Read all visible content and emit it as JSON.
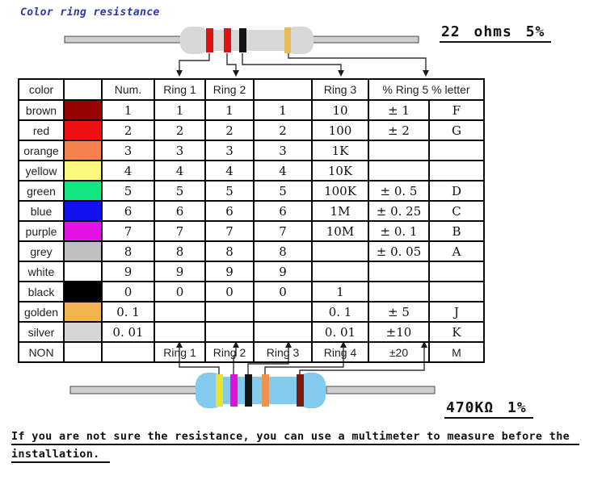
{
  "title": "Color ring resistance",
  "title_color": "#2a35b8",
  "top_resistor": {
    "label": "22 ohms 5%",
    "body_color": "#d8d8d8",
    "band_names": [
      "red",
      "red",
      "black",
      "gold"
    ],
    "band_colors": [
      "#dd1414",
      "#dd1414",
      "#141414",
      "#e6bd58"
    ]
  },
  "bottom_resistor": {
    "label": "470KΩ 1%",
    "body_color": "#82cbec",
    "band_names": [
      "yellow",
      "purple",
      "black",
      "orange",
      "brown"
    ],
    "band_colors": [
      "#e8e232",
      "#e012dd",
      "#141414",
      "#ec9350",
      "#7c1a14"
    ]
  },
  "table": {
    "headers": [
      "color",
      "",
      "Num.",
      "Ring 1",
      "Ring 2",
      "",
      "Ring 3",
      "% Ring 5 % letter"
    ],
    "rows": [
      {
        "label": "brown",
        "swatch": "#990000",
        "cells": [
          "1",
          "1",
          "1",
          "1",
          "10",
          "± 1",
          "F"
        ]
      },
      {
        "label": "red",
        "swatch": "#ee1111",
        "cells": [
          "2",
          "2",
          "2",
          "2",
          "100",
          "± 2",
          "G"
        ]
      },
      {
        "label": "orange",
        "swatch": "#f4824e",
        "cells": [
          "3",
          "3",
          "3",
          "3",
          "1K",
          "",
          ""
        ]
      },
      {
        "label": "yellow",
        "swatch": "#fbf97e",
        "cells": [
          "4",
          "4",
          "4",
          "4",
          "10K",
          "",
          ""
        ]
      },
      {
        "label": "green",
        "swatch": "#12e582",
        "cells": [
          "5",
          "5",
          "5",
          "5",
          "100K",
          "± 0. 5",
          "D"
        ]
      },
      {
        "label": "blue",
        "swatch": "#1111ee",
        "cells": [
          "6",
          "6",
          "6",
          "6",
          "1M",
          "± 0. 25",
          "C"
        ]
      },
      {
        "label": "purple",
        "swatch": "#e513e5",
        "cells": [
          "7",
          "7",
          "7",
          "7",
          "10M",
          "± 0. 1",
          "B"
        ]
      },
      {
        "label": "grey",
        "swatch": "#c0c0c0",
        "cells": [
          "8",
          "8",
          "8",
          "8",
          "",
          "± 0. 05",
          "A"
        ]
      },
      {
        "label": "white",
        "swatch": "#ffffff",
        "cells": [
          "9",
          "9",
          "9",
          "9",
          "",
          "",
          ""
        ]
      },
      {
        "label": "black",
        "swatch": "#000000",
        "cells": [
          "0",
          "0",
          "0",
          "0",
          "1",
          "",
          ""
        ]
      },
      {
        "label": "golden",
        "swatch": "#f0b350",
        "cells": [
          "0. 1",
          "",
          "",
          "",
          "0. 1",
          "± 5",
          "J"
        ]
      },
      {
        "label": "silver",
        "swatch": "#d6d6d6",
        "cells": [
          "0. 01",
          "",
          "",
          "",
          "0. 01",
          "±10",
          "K"
        ]
      },
      {
        "label": "NON",
        "swatch": "",
        "cells": [
          "",
          "Ring 1",
          "Ring 2",
          "Ring 3",
          "Ring 4",
          "±20",
          "M"
        ],
        "sans": true
      }
    ]
  },
  "note": {
    "line1": "If you are not sure the resistance, you can use a multimeter to measure before the",
    "line2": "installation."
  }
}
